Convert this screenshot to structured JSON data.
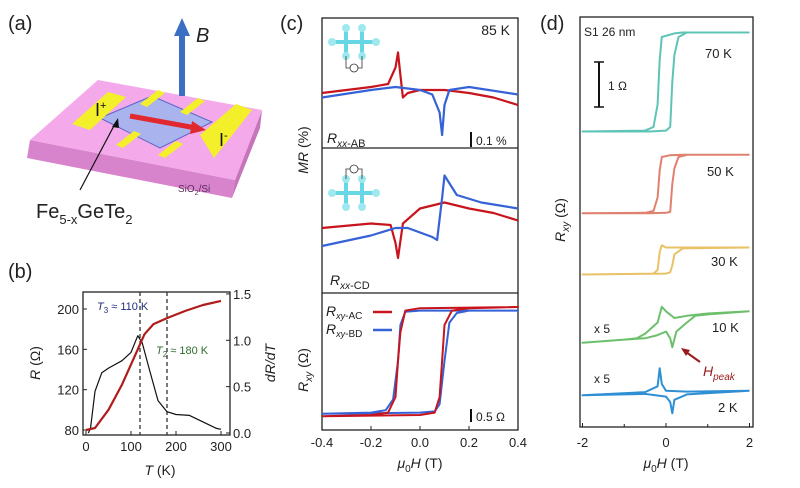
{
  "panel_labels": [
    "(a)",
    "(b)",
    "(c)",
    "(d)"
  ],
  "schematic": {
    "field_label": "B",
    "current_plus": {
      "base": "I",
      "sup": "+"
    },
    "current_minus": {
      "base": "I",
      "sup": "-"
    },
    "substrate": {
      "a": "SiO",
      "sub": "2",
      "b": "/Si"
    },
    "material": {
      "a": "Fe",
      "sub1": "5-x",
      "b": "GeTe",
      "sub2": "2"
    },
    "colors": {
      "substrate": "#f2a6e6",
      "electrode": "#f3ef2a",
      "flake": "#a9b3ee",
      "current_arrow": "#e0282e",
      "field_arrow": "#3b6fc4"
    }
  },
  "chart_data": [
    {
      "panel": "b",
      "type": "line",
      "xlabel": {
        "main": "T",
        "unit": " (K)"
      },
      "ylabel_left": {
        "main": "R",
        "unit": " (Ω)"
      },
      "ylabel_right": "dR/dT",
      "xlim": [
        0,
        300
      ],
      "ylim_left": [
        75,
        217
      ],
      "ylim_right": [
        0,
        1.5
      ],
      "xticks": [
        "0",
        "100",
        "200",
        "300"
      ],
      "yticks_left": [
        "80",
        "120",
        "160",
        "200"
      ],
      "yticks_right": [
        "0.0",
        "0.5",
        "1.0",
        "1.5"
      ],
      "annotations": [
        {
          "main": "T",
          "sub": "3",
          "rest": " ≈ 110 K",
          "x": 120,
          "color": "#1f2f7a"
        },
        {
          "main": "T",
          "sub": "2",
          "rest": " ≈ 180 K",
          "x": 180,
          "color": "#2f6a2a"
        }
      ],
      "series": [
        {
          "axis": "left",
          "color": "#b01c1c",
          "x": [
            0,
            20,
            50,
            80,
            110,
            130,
            150,
            180,
            220,
            260,
            300
          ],
          "y": [
            80,
            82,
            100,
            125,
            155,
            175,
            185,
            191,
            198,
            204,
            208
          ]
        },
        {
          "axis": "right",
          "color": "#111111",
          "x": [
            5,
            10,
            20,
            35,
            50,
            80,
            100,
            115,
            125,
            140,
            160,
            180,
            200,
            230,
            260,
            290,
            300
          ],
          "y": [
            0,
            0.05,
            0.45,
            0.65,
            0.7,
            0.78,
            0.87,
            1.05,
            0.97,
            0.7,
            0.35,
            0.23,
            0.2,
            0.19,
            0.12,
            0.05,
            0.04
          ]
        }
      ]
    },
    {
      "panel": "c",
      "type": "line",
      "xlabel": {
        "a": "μ",
        "sub": "0",
        "b": "H",
        "unit": " (T)"
      },
      "xlim": [
        -0.4,
        0.4
      ],
      "xticks": [
        "-0.4",
        "-0.2",
        "0.0",
        "0.2",
        "0.4"
      ],
      "ylabel_top": {
        "main": "MR",
        "unit": " (%)"
      },
      "ylabel_bottom": {
        "main": "R",
        "sub": "xy",
        "unit": " (Ω)"
      },
      "temperature": "85 K",
      "subplots": [
        {
          "label": {
            "main": "R",
            "sub": "xx",
            "rest": "-AB"
          },
          "scale_bar": "0.1 %",
          "inset_terminals": [
            "C",
            "D",
            "I+",
            "I-",
            "A",
            "B",
            "V"
          ],
          "series": [
            {
              "color": "#c8141c",
              "x": [
                -0.4,
                -0.2,
                -0.13,
                -0.1,
                -0.09,
                -0.08,
                -0.07,
                -0.05,
                0,
                0.1,
                0.2,
                0.3,
                0.4
              ],
              "y": [
                -0.02,
                0.02,
                0.04,
                0.15,
                0.25,
                0.1,
                -0.05,
                -0.02,
                0,
                0,
                -0.02,
                -0.05,
                -0.1
              ]
            },
            {
              "color": "#3562d6",
              "x": [
                -0.4,
                -0.2,
                -0.1,
                0,
                0.05,
                0.08,
                0.09,
                0.1,
                0.12,
                0.2,
                0.4
              ],
              "y": [
                -0.05,
                0,
                0.02,
                0,
                -0.03,
                -0.15,
                -0.3,
                -0.1,
                0,
                0.02,
                -0.03
              ]
            }
          ]
        },
        {
          "label": {
            "main": "R",
            "sub": "xx",
            "rest": "-CD"
          },
          "series": [
            {
              "color": "#c8141c",
              "x": [
                -0.4,
                -0.2,
                -0.12,
                -0.1,
                -0.09,
                -0.07,
                0,
                0.1,
                0.2,
                0.3,
                0.4
              ],
              "y": [
                0,
                0.03,
                0.02,
                -0.1,
                -0.2,
                0.03,
                0.13,
                0.17,
                0.13,
                0.1,
                0.05
              ]
            },
            {
              "color": "#3562d6",
              "x": [
                -0.4,
                -0.2,
                -0.1,
                -0.05,
                0.05,
                0.07,
                0.09,
                0.1,
                0.15,
                0.25,
                0.4
              ],
              "y": [
                -0.12,
                -0.05,
                0,
                0,
                -0.06,
                -0.08,
                0.2,
                0.35,
                0.22,
                0.17,
                0.13
              ]
            }
          ]
        },
        {
          "scale_bar": "0.5 Ω",
          "legend": [
            {
              "main": "R",
              "sub": "xy",
              "rest": "-AC",
              "color": "#c8141c"
            },
            {
              "main": "R",
              "sub": "xy",
              "rest": "-BD",
              "color": "#3562d6"
            }
          ],
          "series": [
            {
              "color": "#3562d6",
              "x": [
                -0.4,
                0,
                0.06,
                0.08,
                0.1,
                0.12,
                0.15,
                0.2,
                0.4,
                0.4,
                0,
                -0.06,
                -0.08,
                -0.09,
                -0.11,
                -0.14,
                -0.2,
                -0.4
              ],
              "y": [
                -2.2,
                -2.15,
                -2.1,
                -1.8,
                0,
                1.6,
                2.0,
                2.1,
                2.1,
                2.1,
                2.1,
                2.05,
                1.5,
                0,
                -1.6,
                -2.05,
                -2.15,
                -2.2
              ]
            },
            {
              "color": "#c8141c",
              "x": [
                -0.4,
                0,
                0.06,
                0.08,
                0.09,
                0.1,
                0.13,
                0.2,
                0.4,
                0.4,
                0,
                -0.06,
                -0.08,
                -0.09,
                -0.1,
                -0.13,
                -0.2,
                -0.4
              ],
              "y": [
                -2.3,
                -2.25,
                -2.15,
                -1.5,
                0,
                1.5,
                2.1,
                2.2,
                2.25,
                2.25,
                2.2,
                2.1,
                1.2,
                0,
                -1.5,
                -2.15,
                -2.25,
                -2.3
              ]
            }
          ]
        }
      ]
    },
    {
      "panel": "d",
      "type": "line",
      "sample": "S1 26 nm",
      "xlabel": {
        "a": "μ",
        "sub": "0",
        "b": "H",
        "unit": " (T)"
      },
      "ylabel": {
        "main": "R",
        "sub": "xy",
        "unit": " (Ω)"
      },
      "xlim": [
        -2,
        2
      ],
      "xticks": [
        "-2",
        "0",
        "2"
      ],
      "scale_bar": "1 Ω",
      "multiplier_label": "x 5",
      "peak_label": {
        "main": "H",
        "sub": "peak",
        "color": "#9a1b1b"
      },
      "series": [
        {
          "name": "70 K",
          "color": "#5ec4b6",
          "x": [
            2,
            0.4,
            0.2,
            -0.1,
            -0.15,
            -0.2,
            -0.3,
            -0.5,
            -2,
            -2,
            -0.4,
            0,
            0.1,
            0.15,
            0.2,
            0.3,
            0.5,
            2
          ],
          "y": [
            1.1,
            1.1,
            1.08,
            1.0,
            0.5,
            -0.5,
            -1.0,
            -1.08,
            -1.1,
            -1.1,
            -1.1,
            -1.08,
            -1.0,
            0,
            0.6,
            1.0,
            1.1,
            1.1
          ]
        },
        {
          "name": "50 K",
          "color": "#e0806f",
          "x": [
            2,
            0.4,
            0.1,
            -0.1,
            -0.15,
            -0.2,
            -0.3,
            -0.5,
            -2,
            -2,
            -0.4,
            0,
            0.1,
            0.15,
            0.2,
            0.3,
            0.5,
            2
          ],
          "y": [
            0.65,
            0.65,
            0.64,
            0.6,
            0.3,
            -0.3,
            -0.6,
            -0.64,
            -0.65,
            -0.65,
            -0.65,
            -0.64,
            -0.62,
            0,
            0.35,
            0.6,
            0.65,
            0.65
          ]
        },
        {
          "name": "30 K",
          "color": "#e9c166",
          "x": [
            2,
            0.3,
            0,
            -0.1,
            -0.15,
            -0.2,
            -0.3,
            -2,
            -2,
            0,
            0.1,
            0.15,
            0.2,
            0.4,
            2
          ],
          "y": [
            0.3,
            0.3,
            0.3,
            0.35,
            0.2,
            -0.2,
            -0.28,
            -0.3,
            -0.3,
            -0.28,
            -0.25,
            -0.1,
            0.15,
            0.28,
            0.3
          ]
        },
        {
          "name": "10 K",
          "color": "#6cc06c",
          "x": [
            2,
            1,
            0.5,
            0.2,
            0,
            -0.1,
            -0.2,
            -0.5,
            -0.7,
            -1,
            -2,
            -2,
            -1,
            -0.5,
            -0.2,
            0,
            0.1,
            0.15,
            0.25,
            0.5,
            0.7,
            1,
            2
          ],
          "y": [
            0.35,
            0.3,
            0.25,
            0.2,
            0.35,
            0.45,
            0.1,
            -0.15,
            -0.25,
            -0.28,
            -0.35,
            -0.35,
            -0.28,
            -0.25,
            -0.18,
            -0.1,
            -0.25,
            -0.45,
            -0.1,
            0.1,
            0.25,
            0.28,
            0.35
          ]
        },
        {
          "name": "2 K",
          "color": "#2e8fd4",
          "x": [
            2,
            0.5,
            0,
            -0.1,
            -0.15,
            -0.2,
            -0.5,
            -2,
            -2,
            -0.5,
            0,
            0.1,
            0.15,
            0.2,
            0.5,
            2
          ],
          "y": [
            0.05,
            0.03,
            0.05,
            0.2,
            0.55,
            0.15,
            0.02,
            -0.05,
            -0.05,
            -0.02,
            -0.08,
            -0.2,
            -0.45,
            -0.15,
            -0.03,
            0.05
          ]
        }
      ]
    }
  ]
}
